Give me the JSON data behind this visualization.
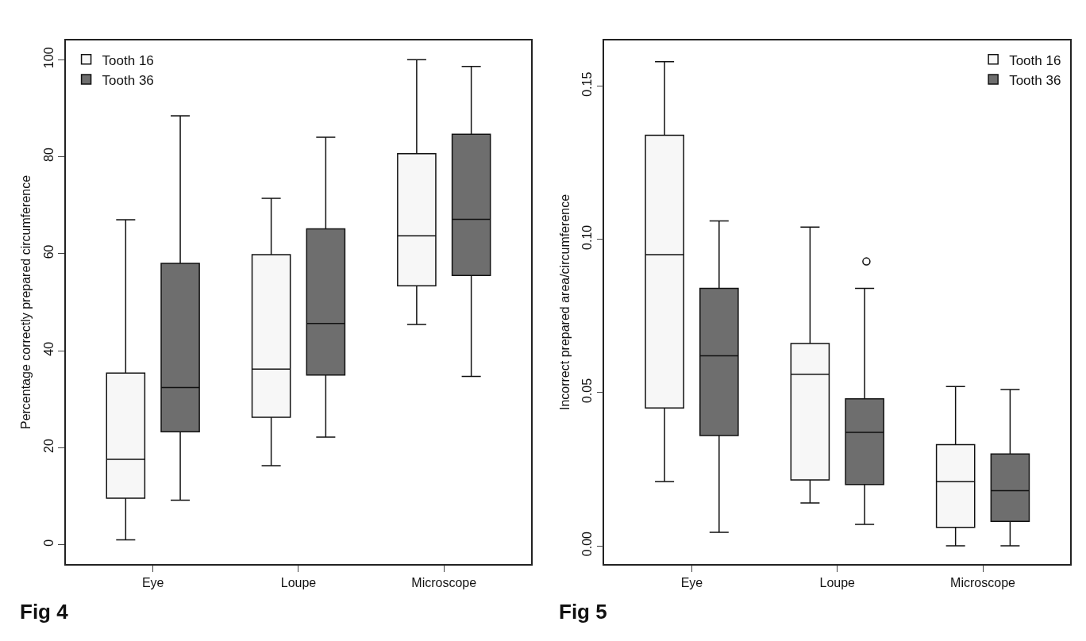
{
  "chart_data": [
    {
      "type": "box",
      "title": "Fig 4",
      "ylabel": "Percentage correctly prepared circumference",
      "categories": [
        "Eye",
        "Loupe",
        "Microscope"
      ],
      "ylim": [
        -4,
        104
      ],
      "yticks": [
        0,
        20,
        40,
        60,
        80,
        100
      ],
      "legend": "top left",
      "series": [
        {
          "name": "Tooth 16",
          "color": "#f7f7f7",
          "boxes": [
            {
              "low": 1.0,
              "q1": 9.6,
              "median": 17.6,
              "q3": 35.4,
              "high": 67.0
            },
            {
              "low": 16.3,
              "q1": 26.3,
              "median": 36.2,
              "q3": 59.8,
              "high": 71.4
            },
            {
              "low": 45.4,
              "q1": 53.4,
              "median": 63.7,
              "q3": 80.6,
              "high": 100
            }
          ]
        },
        {
          "name": "Tooth 36",
          "color": "#6e6e6e",
          "boxes": [
            {
              "low": 9.2,
              "q1": 23.3,
              "median": 32.4,
              "q3": 58.0,
              "high": 88.4
            },
            {
              "low": 22.2,
              "q1": 35.0,
              "median": 45.6,
              "q3": 65.1,
              "high": 84.0
            },
            {
              "low": 34.7,
              "q1": 55.5,
              "median": 67.1,
              "q3": 84.6,
              "high": 98.6
            }
          ]
        }
      ]
    },
    {
      "type": "box",
      "title": "Fig 5",
      "ylabel": "Incorrect prepared area/circumference",
      "categories": [
        "Eye",
        "Loupe",
        "Microscope"
      ],
      "ylim": [
        -0.006,
        0.165
      ],
      "yticks": [
        {
          "value": 0,
          "label": "0.00"
        },
        0.05,
        {
          "value": 0.1,
          "label": "0.10"
        },
        0.15
      ],
      "legend": "top right",
      "series": [
        {
          "name": "Tooth 16",
          "color": "#f7f7f7",
          "boxes": [
            {
              "low": 0.021,
              "q1": 0.045,
              "median": 0.095,
              "q3": 0.134,
              "high": 0.158
            },
            {
              "low": 0.014,
              "q1": 0.0215,
              "median": 0.056,
              "q3": 0.066,
              "high": 0.104
            },
            {
              "low": 0.0,
              "q1": 0.006,
              "median": 0.021,
              "q3": 0.033,
              "high": 0.052
            }
          ]
        },
        {
          "name": "Tooth 36",
          "color": "#6e6e6e",
          "boxes": [
            {
              "low": 0.0044,
              "q1": 0.036,
              "median": 0.062,
              "q3": 0.084,
              "high": 0.106
            },
            {
              "low": 0.007,
              "q1": 0.02,
              "median": 0.037,
              "q3": 0.048,
              "high": 0.084,
              "outliers": [
                0.0928
              ]
            },
            {
              "low": 0.0,
              "q1": 0.008,
              "median": 0.018,
              "q3": 0.03,
              "high": 0.051
            }
          ]
        }
      ]
    }
  ]
}
